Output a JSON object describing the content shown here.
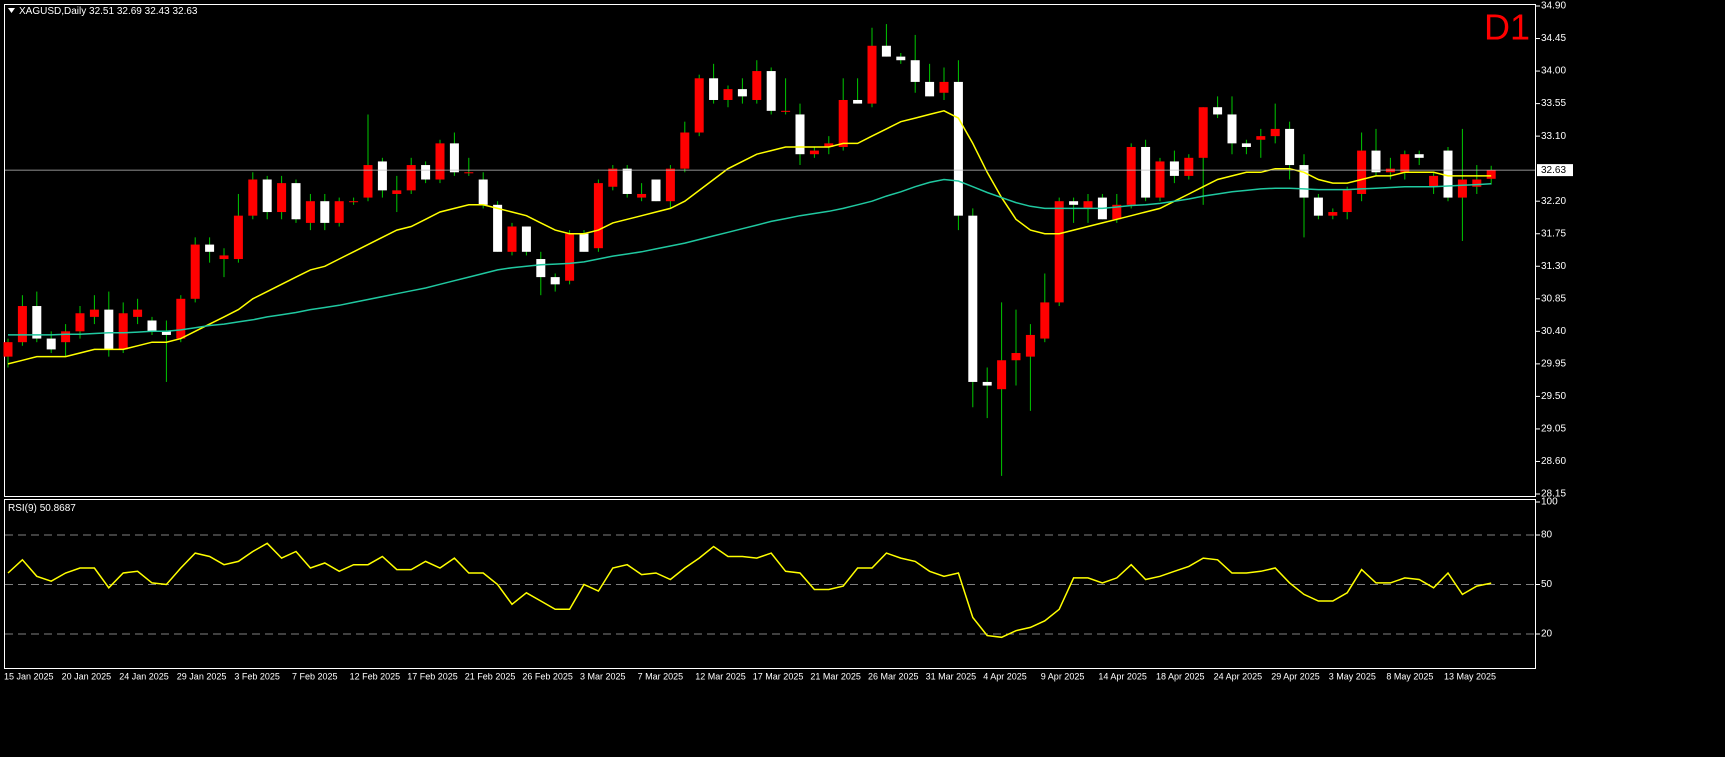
{
  "chart_data": [
    {
      "type": "candlestick",
      "title": "XAGUSD,Daily",
      "annotation": "D1",
      "up_color": "#ff0000",
      "down_color": "#ffffff",
      "wick_color": "#00c800",
      "price_line_color": "#c0c0c0",
      "categories": [
        "15 Jan 2025",
        null,
        null,
        null,
        "20 Jan 2025",
        null,
        null,
        null,
        "24 Jan 2025",
        null,
        null,
        null,
        "29 Jan 2025",
        null,
        null,
        null,
        "3 Feb 2025",
        null,
        null,
        null,
        "7 Feb 2025",
        null,
        null,
        null,
        "12 Feb 2025",
        null,
        null,
        null,
        "17 Feb 2025",
        null,
        null,
        null,
        "21 Feb 2025",
        null,
        null,
        null,
        "26 Feb 2025",
        null,
        null,
        null,
        "3 Mar 2025",
        null,
        null,
        null,
        "7 Mar 2025",
        null,
        null,
        null,
        "12 Mar 2025",
        null,
        null,
        null,
        "17 Mar 2025",
        null,
        null,
        null,
        "21 Mar 2025",
        null,
        null,
        null,
        "26 Mar 2025",
        null,
        null,
        null,
        "31 Mar 2025",
        null,
        null,
        null,
        "4 Apr 2025",
        null,
        null,
        null,
        "9 Apr 2025",
        null,
        null,
        null,
        "14 Apr 2025",
        null,
        null,
        null,
        "18 Apr 2025",
        null,
        null,
        null,
        "24 Apr 2025",
        null,
        null,
        null,
        "29 Apr 2025",
        null,
        null,
        null,
        "3 May 2025",
        null,
        null,
        null,
        "8 May 2025",
        null,
        null,
        null,
        "13 May 2025",
        null,
        null,
        null
      ],
      "open": [
        30.05,
        30.25,
        30.75,
        30.3,
        30.25,
        30.4,
        30.6,
        30.7,
        30.15,
        30.6,
        30.55,
        30.4,
        30.3,
        30.85,
        31.6,
        31.4,
        31.4,
        32.0,
        32.5,
        32.05,
        32.45,
        31.9,
        32.2,
        31.9,
        32.2,
        32.25,
        32.75,
        32.3,
        32.35,
        32.7,
        32.5,
        33.0,
        32.6,
        32.5,
        32.15,
        31.5,
        31.85,
        31.4,
        31.15,
        31.1,
        31.75,
        31.55,
        32.4,
        32.65,
        32.25,
        32.5,
        32.2,
        32.65,
        33.15,
        33.9,
        33.6,
        33.75,
        33.6,
        34.0,
        33.45,
        33.4,
        32.85,
        32.95,
        32.95,
        33.6,
        33.55,
        34.35,
        34.2,
        34.15,
        33.85,
        33.7,
        33.85,
        32.0,
        29.7,
        29.6,
        30.0,
        30.05,
        30.3,
        30.8,
        32.2,
        32.1,
        32.25,
        31.95,
        32.15,
        32.95,
        32.25,
        32.75,
        32.55,
        32.8,
        33.5,
        33.4,
        33.0,
        33.05,
        33.1,
        33.2,
        32.7,
        32.25,
        32.0,
        32.05,
        32.3,
        32.9,
        32.6,
        32.6,
        32.85,
        32.4,
        32.9,
        32.25,
        32.4,
        32.51
      ],
      "high": [
        30.3,
        30.9,
        30.95,
        30.4,
        30.5,
        30.75,
        30.9,
        30.95,
        30.8,
        30.85,
        30.6,
        30.55,
        30.9,
        31.7,
        31.7,
        31.55,
        32.3,
        32.6,
        32.55,
        32.55,
        32.5,
        32.3,
        32.3,
        32.25,
        32.25,
        33.4,
        32.8,
        32.55,
        32.8,
        32.75,
        33.05,
        33.15,
        32.8,
        32.6,
        32.2,
        31.9,
        31.85,
        31.5,
        31.2,
        31.8,
        31.8,
        32.5,
        32.7,
        32.7,
        32.45,
        32.5,
        32.7,
        33.3,
        33.95,
        34.1,
        33.8,
        33.9,
        34.15,
        34.05,
        33.9,
        33.55,
        32.95,
        33.1,
        33.9,
        33.9,
        34.6,
        34.65,
        34.25,
        34.5,
        34.1,
        34.05,
        34.15,
        32.1,
        29.9,
        30.8,
        30.7,
        30.5,
        31.2,
        32.25,
        32.25,
        32.3,
        32.3,
        32.3,
        33.0,
        33.05,
        32.8,
        32.9,
        32.85,
        33.5,
        33.65,
        33.65,
        33.05,
        33.2,
        33.55,
        33.3,
        32.85,
        32.3,
        32.1,
        32.4,
        33.15,
        33.2,
        32.8,
        32.9,
        32.9,
        32.6,
        32.95,
        33.2,
        32.7,
        32.69
      ],
      "low": [
        29.9,
        30.2,
        30.25,
        30.1,
        30.05,
        30.3,
        30.5,
        30.05,
        30.1,
        30.5,
        30.35,
        29.7,
        30.25,
        30.8,
        31.35,
        31.15,
        31.35,
        31.95,
        31.95,
        31.95,
        31.9,
        31.8,
        31.8,
        31.85,
        32.15,
        32.2,
        32.25,
        32.05,
        32.3,
        32.45,
        32.45,
        32.55,
        32.55,
        32.1,
        31.5,
        31.45,
        31.45,
        30.9,
        30.95,
        31.05,
        31.5,
        31.5,
        32.35,
        32.25,
        32.2,
        32.2,
        32.1,
        32.6,
        33.1,
        33.55,
        33.5,
        33.55,
        33.55,
        33.4,
        33.4,
        32.7,
        32.8,
        32.85,
        32.9,
        33.55,
        33.5,
        34.2,
        34.1,
        33.7,
        33.65,
        33.6,
        31.8,
        29.35,
        29.2,
        28.4,
        29.65,
        29.3,
        30.25,
        30.75,
        31.9,
        31.9,
        31.95,
        31.9,
        32.1,
        32.2,
        32.2,
        32.45,
        32.5,
        32.15,
        33.35,
        32.85,
        32.85,
        32.8,
        33.0,
        32.5,
        31.7,
        31.95,
        31.95,
        31.95,
        32.2,
        32.55,
        32.5,
        32.5,
        32.7,
        32.3,
        32.2,
        31.65,
        32.3,
        32.43
      ],
      "close": [
        30.25,
        30.75,
        30.3,
        30.15,
        30.4,
        30.65,
        30.7,
        30.15,
        30.65,
        30.7,
        30.4,
        30.35,
        30.85,
        31.6,
        31.5,
        31.45,
        32.0,
        32.5,
        32.05,
        32.45,
        31.95,
        32.2,
        31.9,
        32.2,
        32.2,
        32.7,
        32.35,
        32.35,
        32.7,
        32.5,
        33.0,
        32.6,
        32.6,
        32.15,
        31.5,
        31.85,
        31.5,
        31.15,
        31.05,
        31.75,
        31.5,
        32.45,
        32.65,
        32.3,
        32.3,
        32.2,
        32.65,
        33.15,
        33.9,
        33.6,
        33.75,
        33.65,
        34.0,
        33.45,
        33.45,
        32.85,
        32.9,
        33.0,
        33.6,
        33.55,
        34.35,
        34.2,
        34.15,
        33.85,
        33.65,
        33.85,
        32.0,
        29.7,
        29.65,
        30.0,
        30.1,
        30.35,
        30.8,
        32.2,
        32.15,
        32.2,
        31.95,
        32.15,
        32.95,
        32.25,
        32.75,
        32.55,
        32.8,
        33.5,
        33.4,
        33.0,
        32.95,
        33.1,
        33.2,
        32.7,
        32.25,
        32.0,
        32.05,
        32.35,
        32.9,
        32.6,
        32.65,
        32.85,
        32.8,
        32.55,
        32.25,
        32.5,
        32.5,
        32.63
      ],
      "series": [
        {
          "color": "#ffff00",
          "values": [
            29.95,
            30.0,
            30.05,
            30.05,
            30.05,
            30.1,
            30.15,
            30.15,
            30.15,
            30.2,
            30.25,
            30.25,
            30.3,
            30.4,
            30.5,
            30.6,
            30.7,
            30.85,
            30.95,
            31.05,
            31.15,
            31.25,
            31.3,
            31.4,
            31.5,
            31.6,
            31.7,
            31.8,
            31.85,
            31.95,
            32.05,
            32.1,
            32.15,
            32.15,
            32.1,
            32.05,
            32.0,
            31.9,
            31.8,
            31.75,
            31.75,
            31.8,
            31.9,
            31.95,
            32.0,
            32.05,
            32.1,
            32.2,
            32.35,
            32.5,
            32.65,
            32.75,
            32.85,
            32.9,
            32.95,
            32.95,
            32.95,
            32.95,
            33.0,
            33.0,
            33.1,
            33.2,
            33.3,
            33.35,
            33.4,
            33.45,
            33.35,
            33.0,
            32.6,
            32.25,
            31.95,
            31.8,
            31.75,
            31.75,
            31.8,
            31.85,
            31.9,
            31.95,
            32.0,
            32.05,
            32.1,
            32.2,
            32.3,
            32.4,
            32.5,
            32.55,
            32.6,
            32.6,
            32.65,
            32.65,
            32.6,
            32.5,
            32.45,
            32.45,
            32.5,
            32.55,
            32.55,
            32.6,
            32.6,
            32.6,
            32.55,
            32.55,
            32.55,
            32.55
          ]
        },
        {
          "color": "#20c8a0",
          "values": [
            30.35,
            30.35,
            30.35,
            30.35,
            30.36,
            30.36,
            30.37,
            30.38,
            30.38,
            30.39,
            30.4,
            30.4,
            30.42,
            30.45,
            30.48,
            30.5,
            30.53,
            30.56,
            30.6,
            30.63,
            30.66,
            30.7,
            30.73,
            30.76,
            30.8,
            30.84,
            30.88,
            30.92,
            30.96,
            31.0,
            31.05,
            31.1,
            31.15,
            31.2,
            31.25,
            31.28,
            31.3,
            31.32,
            31.33,
            31.34,
            31.36,
            31.4,
            31.44,
            31.47,
            31.5,
            31.54,
            31.58,
            31.62,
            31.67,
            31.72,
            31.77,
            31.82,
            31.87,
            31.92,
            31.96,
            32.0,
            32.03,
            32.06,
            32.1,
            32.15,
            32.2,
            32.27,
            32.33,
            32.4,
            32.46,
            32.5,
            32.48,
            32.4,
            32.32,
            32.25,
            32.18,
            32.13,
            32.1,
            32.1,
            32.1,
            32.1,
            32.1,
            32.12,
            32.14,
            32.15,
            32.17,
            32.2,
            32.23,
            32.27,
            32.3,
            32.33,
            32.35,
            32.37,
            32.38,
            32.38,
            32.37,
            32.36,
            32.36,
            32.36,
            32.37,
            32.38,
            32.39,
            32.4,
            32.4,
            32.4,
            32.41,
            32.42,
            32.43,
            32.44
          ]
        }
      ],
      "ylim": [
        28.15,
        34.9
      ],
      "yticks": [
        {
          "value": 34.9,
          "label": "34.90"
        },
        34.45,
        {
          "value": 34.0,
          "label": "34.00"
        },
        33.55,
        {
          "value": 33.1,
          "label": "33.10"
        },
        {
          "value": 32.2,
          "label": "32.20"
        },
        31.75,
        {
          "value": 31.3,
          "label": "31.30"
        },
        30.85,
        {
          "value": 30.4,
          "label": "30.40"
        },
        29.95,
        {
          "value": 29.5,
          "label": "29.50"
        },
        29.05,
        {
          "value": 28.6,
          "label": "28.60"
        },
        28.15
      ]
    },
    {
      "type": "line",
      "title": "RSI(9)",
      "level_color": "#808080",
      "series": [
        {
          "color": "#ffff00",
          "values": [
            57,
            65,
            55,
            52,
            57,
            60,
            60,
            48,
            57,
            58,
            51,
            50,
            60,
            69,
            67,
            62,
            64,
            70,
            75,
            66,
            70,
            60,
            63,
            58,
            62,
            62,
            67,
            59,
            59,
            64,
            60,
            66,
            57,
            57,
            50,
            38,
            45,
            40,
            35,
            35,
            50,
            46,
            60,
            62,
            56,
            57,
            53,
            60,
            66,
            73,
            67,
            67,
            66,
            69,
            58,
            57,
            47,
            47,
            49,
            60,
            60,
            69,
            66,
            64,
            58,
            55,
            57,
            30,
            19,
            18,
            22,
            24,
            28,
            35,
            54,
            54,
            51,
            54,
            62,
            53,
            55,
            58,
            61,
            66,
            65,
            57,
            57,
            58,
            60,
            51,
            44,
            40,
            40,
            45,
            59,
            51,
            51,
            54,
            53,
            48,
            57,
            44,
            49,
            50.8687
          ]
        }
      ],
      "ylim": [
        0,
        100
      ],
      "yticks": [
        20,
        50,
        80,
        100
      ]
    }
  ]
}
